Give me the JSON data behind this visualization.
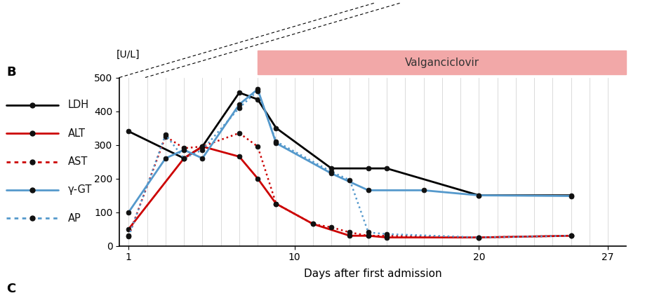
{
  "title_label": "[U/L]",
  "xlabel": "Days after first admission",
  "panel_label": "B",
  "panel_label_c": "C",
  "valganciclovir_label": "Valganciclovir",
  "valganciclovir_color": "#f2a8a8",
  "valganciclovir_start": 8.0,
  "ylim": [
    0,
    500
  ],
  "yticks": [
    0,
    100,
    200,
    300,
    400,
    500
  ],
  "xticks": [
    1,
    10,
    20,
    27
  ],
  "xgrid_ticks": [
    1,
    2,
    3,
    4,
    5,
    6,
    7,
    8,
    9,
    10,
    11,
    12,
    13,
    14,
    15,
    16,
    17,
    18,
    19,
    20,
    21,
    22,
    23,
    24,
    25,
    26,
    27
  ],
  "xlim": [
    0.5,
    28.0
  ],
  "series": {
    "LDH": {
      "x": [
        1,
        4,
        5,
        7,
        8,
        9,
        12,
        14,
        15,
        20,
        25
      ],
      "y": [
        340,
        260,
        295,
        455,
        435,
        350,
        230,
        230,
        230,
        150,
        150
      ],
      "color": "#000000",
      "linestyle": "solid",
      "linewidth": 2.0,
      "markersize": 5
    },
    "ALT": {
      "x": [
        1,
        4,
        5,
        7,
        8,
        9,
        11,
        13,
        14,
        15,
        20,
        25
      ],
      "y": [
        50,
        260,
        295,
        265,
        200,
        125,
        65,
        30,
        30,
        25,
        25,
        30
      ],
      "color": "#cc0000",
      "linestyle": "solid",
      "linewidth": 2.0,
      "markersize": 5
    },
    "AST": {
      "x": [
        1,
        3,
        4,
        5,
        7,
        8,
        9,
        11,
        12,
        13,
        14,
        15,
        20,
        25
      ],
      "y": [
        30,
        325,
        290,
        295,
        335,
        295,
        125,
        65,
        55,
        40,
        30,
        30,
        25,
        30
      ],
      "color": "#cc0000",
      "linestyle": "dotted",
      "linewidth": 1.8,
      "markersize": 5
    },
    "gamma_GT": {
      "x": [
        1,
        3,
        4,
        5,
        7,
        8,
        9,
        12,
        14,
        17,
        20,
        25
      ],
      "y": [
        100,
        260,
        285,
        260,
        420,
        465,
        305,
        215,
        165,
        165,
        150,
        148
      ],
      "color": "#5599cc",
      "linestyle": "solid",
      "linewidth": 2.0,
      "markersize": 5
    },
    "AP": {
      "x": [
        1,
        3,
        4,
        5,
        7,
        8,
        9,
        12,
        13,
        14,
        15,
        20,
        25
      ],
      "y": [
        28,
        330,
        260,
        285,
        410,
        460,
        310,
        220,
        195,
        40,
        35,
        25,
        30
      ],
      "color": "#5599cc",
      "linestyle": "dotted",
      "linewidth": 1.8,
      "markersize": 5
    }
  },
  "legend_entries": [
    {
      "label": "LDH",
      "color": "#000000",
      "linestyle": "solid"
    },
    {
      "label": "ALT",
      "color": "#cc0000",
      "linestyle": "solid"
    },
    {
      "label": "AST",
      "color": "#cc0000",
      "linestyle": "dotted"
    },
    {
      "label": "γ-GT",
      "color": "#5599cc",
      "linestyle": "solid"
    },
    {
      "label": "AP",
      "color": "#5599cc",
      "linestyle": "dotted"
    }
  ],
  "background_color": "#ffffff"
}
